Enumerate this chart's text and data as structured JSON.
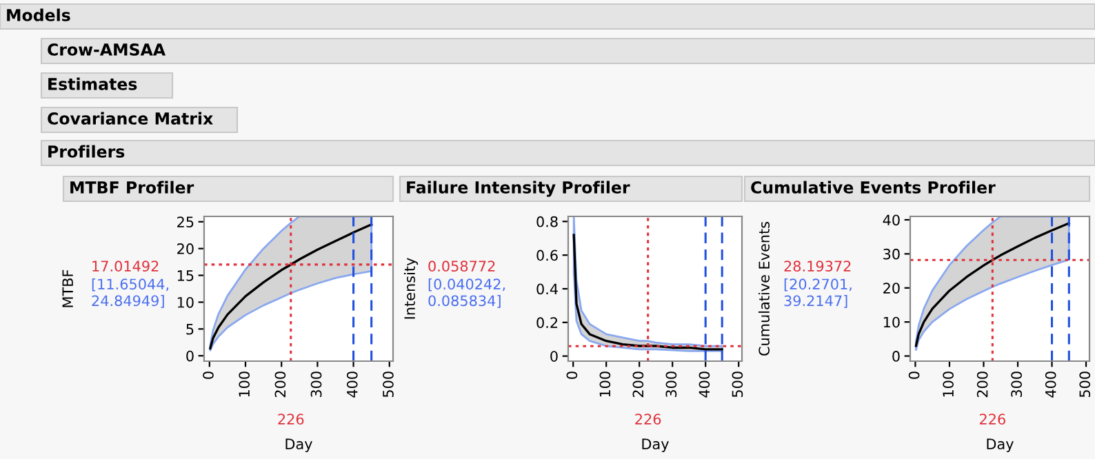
{
  "chart_data": [
    {
      "type": "line",
      "title": "MTBF Profiler",
      "xlabel": "Day",
      "ylabel": "MTBF",
      "annotations": [
        "Models",
        "Crow-AMSAA",
        "Estimates",
        "Covariance Matrix",
        "Profilers",
        "[11.65044,\n24.84949]"
      ],
      "series": [
        {
          "color": "#000000",
          "x": [
            2,
            10,
            25,
            50,
            100,
            150,
            200,
            226,
            250,
            300,
            350,
            400,
            450
          ],
          "values": [
            1.4,
            3.3,
            5.3,
            7.7,
            11.1,
            13.7,
            16.0,
            17.0,
            18.0,
            19.8,
            21.4,
            23.0,
            24.5
          ],
          "lower": [
            1.0,
            2.2,
            3.6,
            5.3,
            7.6,
            9.4,
            10.9,
            11.7,
            12.3,
            13.5,
            14.5,
            15.2,
            15.8
          ],
          "upper": [
            2.0,
            4.8,
            7.8,
            11.2,
            16.1,
            20.0,
            23.3,
            24.8,
            26,
            26,
            26,
            26,
            26
          ]
        }
      ],
      "xlim": [
        -15,
        510
      ],
      "ylim": [
        -1,
        26
      ],
      "xticks": [
        0,
        100,
        200,
        300,
        400,
        500
      ],
      "yticks": [
        0,
        5,
        10,
        15,
        20,
        25
      ],
      "ref_lines": [
        {
          "axis": "x",
          "value": 226,
          "label": "226",
          "color": "#e0303a",
          "line_style": "dotted"
        },
        {
          "axis": "y",
          "value": 17.01492,
          "label": "17.01492",
          "color": "#e0303a",
          "line_style": "dotted"
        },
        {
          "axis": "x",
          "value": 400,
          "color": "#2050e0",
          "line_style": "dashed"
        },
        {
          "axis": "x",
          "value": 450,
          "color": "#2050e0",
          "line_style": "dashed"
        }
      ]
    },
    {
      "type": "line",
      "title": "Failure Intensity Profiler",
      "xlabel": "Day",
      "ylabel": "Intensity",
      "annotations": [
        "[0.040242,\n0.085834]"
      ],
      "series": [
        {
          "color": "#000000",
          "x": [
            2,
            10,
            25,
            50,
            100,
            150,
            200,
            226,
            250,
            300,
            350,
            400,
            450
          ],
          "values": [
            0.72,
            0.31,
            0.19,
            0.13,
            0.09,
            0.07,
            0.06,
            0.06,
            0.06,
            0.05,
            0.05,
            0.04,
            0.04
          ],
          "lower": [
            0.49,
            0.21,
            0.13,
            0.09,
            0.06,
            0.05,
            0.04,
            0.04,
            0.04,
            0.035,
            0.03,
            0.03,
            0.03
          ],
          "upper": [
            0.83,
            0.45,
            0.27,
            0.19,
            0.13,
            0.11,
            0.09,
            0.09,
            0.08,
            0.07,
            0.07,
            0.06,
            0.06
          ]
        }
      ],
      "xlim": [
        -15,
        510
      ],
      "ylim": [
        -0.03,
        0.83
      ],
      "xticks": [
        0,
        100,
        200,
        300,
        400,
        500
      ],
      "yticks": [
        0,
        0.2,
        0.4,
        0.6,
        0.8
      ],
      "ref_lines": [
        {
          "axis": "x",
          "value": 226,
          "label": "226",
          "color": "#e0303a",
          "line_style": "dotted"
        },
        {
          "axis": "y",
          "value": 0.058772,
          "label": "0.058772",
          "color": "#e0303a",
          "line_style": "dotted"
        },
        {
          "axis": "x",
          "value": 400,
          "color": "#2050e0",
          "line_style": "dashed"
        },
        {
          "axis": "x",
          "value": 450,
          "color": "#2050e0",
          "line_style": "dashed"
        }
      ]
    },
    {
      "type": "line",
      "title": "Cumulative Events Profiler",
      "xlabel": "Day",
      "ylabel": "Cumulative Events",
      "annotations": [
        "[20.2701,\n39.2147]"
      ],
      "series": [
        {
          "color": "#000000",
          "x": [
            2,
            10,
            25,
            50,
            100,
            150,
            200,
            226,
            250,
            300,
            350,
            400,
            450
          ],
          "values": [
            3.0,
            6.5,
            10.0,
            13.9,
            19.2,
            23.2,
            26.6,
            28.2,
            29.6,
            32.2,
            34.7,
            36.9,
            39.0
          ],
          "lower": [
            1.8,
            4.7,
            7.2,
            10.0,
            13.8,
            16.7,
            19.1,
            20.3,
            21.3,
            23.2,
            25.0,
            26.7,
            28.3
          ],
          "upper": [
            4.2,
            9.0,
            13.9,
            19.3,
            26.7,
            32.3,
            37.0,
            39.2,
            41,
            41,
            41,
            41,
            41
          ]
        }
      ],
      "xlim": [
        -15,
        510
      ],
      "ylim": [
        -1.5,
        41
      ],
      "xticks": [
        0,
        100,
        200,
        300,
        400,
        500
      ],
      "yticks": [
        0,
        10,
        20,
        30,
        40
      ],
      "ref_lines": [
        {
          "axis": "x",
          "value": 226,
          "label": "226",
          "color": "#e0303a",
          "line_style": "dotted"
        },
        {
          "axis": "y",
          "value": 28.19372,
          "label": "28.19372",
          "color": "#e0303a",
          "line_style": "dotted"
        },
        {
          "axis": "x",
          "value": 400,
          "color": "#2050e0",
          "line_style": "dashed"
        },
        {
          "axis": "x",
          "value": 450,
          "color": "#2050e0",
          "line_style": "dashed"
        }
      ]
    }
  ]
}
